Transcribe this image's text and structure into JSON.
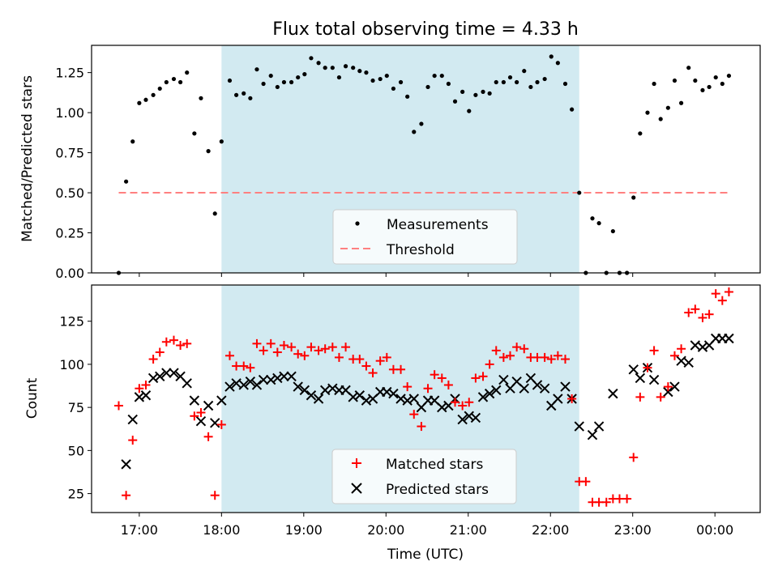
{
  "title": "Flux total observing time = 4.33 h",
  "xlabel": "Time (UTC)",
  "x_ticks": [
    "17:00",
    "18:00",
    "19:00",
    "20:00",
    "21:00",
    "22:00",
    "23:00",
    "00:00"
  ],
  "colors": {
    "shade": "#add8e6",
    "measurement": "#000000",
    "threshold": "#ff8080",
    "matched": "#ff0000",
    "predicted": "#000000"
  },
  "chart_data": [
    {
      "type": "scatter",
      "panel": "top",
      "ylabel": "Matched/Predicted stars",
      "xlim_hours": [
        16.42,
        24.55
      ],
      "ylim": [
        0,
        1.42
      ],
      "y_ticks": [
        "0.00",
        "0.25",
        "0.50",
        "0.75",
        "1.00",
        "1.25"
      ],
      "shaded_region_hours": [
        18.0,
        22.35
      ],
      "legend": {
        "location": "lower center",
        "entries": [
          "Measurements",
          "Threshold"
        ]
      },
      "threshold": {
        "name": "Threshold",
        "value": 0.5,
        "x_range_hours": [
          16.75,
          24.2
        ]
      },
      "x": [
        16.75,
        16.84,
        16.92,
        17.0,
        17.08,
        17.17,
        17.25,
        17.33,
        17.42,
        17.5,
        17.58,
        17.67,
        17.75,
        17.84,
        17.92,
        18.0,
        18.1,
        18.18,
        18.27,
        18.35,
        18.43,
        18.51,
        18.6,
        18.68,
        18.76,
        18.85,
        18.93,
        19.01,
        19.09,
        19.18,
        19.26,
        19.35,
        19.43,
        19.51,
        19.6,
        19.68,
        19.76,
        19.84,
        19.93,
        20.01,
        20.09,
        20.18,
        20.26,
        20.34,
        20.43,
        20.51,
        20.59,
        20.68,
        20.76,
        20.84,
        20.93,
        21.01,
        21.09,
        21.18,
        21.26,
        21.34,
        21.43,
        21.51,
        21.59,
        21.68,
        21.76,
        21.84,
        21.93,
        22.01,
        22.09,
        22.18,
        22.26,
        22.35,
        22.43,
        22.51,
        22.59,
        22.68,
        22.76,
        22.84,
        22.93,
        23.01,
        23.09,
        23.18,
        23.26,
        23.34,
        23.43,
        23.51,
        23.59,
        23.68,
        23.76,
        23.85,
        23.93,
        24.01,
        24.09,
        24.17
      ],
      "series": [
        {
          "name": "Measurements",
          "values": [
            0.0,
            0.57,
            0.82,
            1.06,
            1.08,
            1.11,
            1.15,
            1.19,
            1.21,
            1.19,
            1.25,
            0.87,
            1.09,
            0.76,
            0.37,
            0.82,
            1.2,
            1.11,
            1.12,
            1.09,
            1.27,
            1.18,
            1.23,
            1.16,
            1.19,
            1.19,
            1.22,
            1.24,
            1.34,
            1.31,
            1.28,
            1.28,
            1.22,
            1.29,
            1.28,
            1.26,
            1.25,
            1.2,
            1.21,
            1.23,
            1.15,
            1.19,
            1.1,
            0.88,
            0.93,
            1.16,
            1.23,
            1.23,
            1.18,
            1.07,
            1.13,
            1.01,
            1.11,
            1.13,
            1.12,
            1.19,
            1.19,
            1.22,
            1.19,
            1.26,
            1.16,
            1.19,
            1.21,
            1.35,
            1.31,
            1.18,
            1.02,
            0.5,
            0.0,
            0.34,
            0.31,
            0.0,
            0.26,
            0.0,
            0.0,
            0.47,
            0.87,
            1.0,
            1.18,
            0.96,
            1.03,
            1.2,
            1.06,
            1.28,
            1.2,
            1.14,
            1.16,
            1.22,
            1.18,
            1.23
          ]
        }
      ]
    },
    {
      "type": "scatter",
      "panel": "bottom",
      "ylabel": "Count",
      "xlabel": "Time (UTC)",
      "xlim_hours": [
        16.42,
        24.55
      ],
      "ylim": [
        14,
        146
      ],
      "y_ticks": [
        "25",
        "50",
        "75",
        "100",
        "125"
      ],
      "shaded_region_hours": [
        18.0,
        22.35
      ],
      "legend": {
        "location": "lower center",
        "entries": [
          "Matched stars",
          "Predicted stars"
        ]
      },
      "x": [
        16.75,
        16.84,
        16.92,
        17.0,
        17.08,
        17.17,
        17.25,
        17.33,
        17.42,
        17.5,
        17.58,
        17.67,
        17.75,
        17.84,
        17.92,
        18.0,
        18.1,
        18.18,
        18.27,
        18.35,
        18.43,
        18.51,
        18.6,
        18.68,
        18.76,
        18.85,
        18.93,
        19.01,
        19.09,
        19.18,
        19.26,
        19.35,
        19.43,
        19.51,
        19.6,
        19.68,
        19.76,
        19.84,
        19.93,
        20.01,
        20.09,
        20.18,
        20.26,
        20.34,
        20.43,
        20.51,
        20.59,
        20.68,
        20.76,
        20.84,
        20.93,
        21.01,
        21.09,
        21.18,
        21.26,
        21.34,
        21.43,
        21.51,
        21.59,
        21.68,
        21.76,
        21.84,
        21.93,
        22.01,
        22.09,
        22.18,
        22.26,
        22.35,
        22.43,
        22.51,
        22.59,
        22.68,
        22.76,
        22.84,
        22.93,
        23.01,
        23.09,
        23.18,
        23.26,
        23.34,
        23.43,
        23.51,
        23.59,
        23.68,
        23.76,
        23.85,
        23.93,
        24.01,
        24.09,
        24.17
      ],
      "series": [
        {
          "name": "Matched stars",
          "marker": "plus",
          "values": [
            76,
            24,
            56,
            86,
            88,
            103,
            107,
            113,
            114,
            111,
            112,
            70,
            72,
            58,
            24,
            65,
            105,
            99,
            99,
            98,
            112,
            108,
            112,
            107,
            111,
            110,
            106,
            105,
            110,
            108,
            109,
            110,
            104,
            110,
            103,
            103,
            99,
            95,
            102,
            104,
            97,
            97,
            87,
            71,
            64,
            86,
            94,
            92,
            88,
            78,
            76,
            78,
            92,
            93,
            100,
            108,
            104,
            105,
            110,
            109,
            104,
            104,
            104,
            103,
            105,
            103,
            80,
            32,
            32,
            20,
            20,
            20,
            22,
            22,
            22,
            46,
            81,
            98,
            108,
            81,
            87,
            105,
            109,
            130,
            132,
            127,
            129,
            141,
            137,
            142
          ]
        },
        {
          "name": "Predicted stars",
          "marker": "x",
          "values": [
            null,
            42,
            68,
            81,
            82,
            92,
            93,
            95,
            95,
            93,
            89,
            79,
            67,
            76,
            66,
            79,
            87,
            89,
            88,
            90,
            88,
            91,
            91,
            92,
            93,
            93,
            87,
            85,
            82,
            80,
            85,
            86,
            85,
            85,
            81,
            82,
            79,
            80,
            84,
            84,
            83,
            80,
            79,
            80,
            75,
            79,
            79,
            75,
            76,
            80,
            68,
            70,
            69,
            81,
            83,
            85,
            91,
            86,
            90,
            86,
            92,
            88,
            86,
            76,
            80,
            87,
            80,
            64,
            null,
            59,
            64,
            null,
            83,
            null,
            null,
            97,
            92,
            98,
            91,
            null,
            84,
            87,
            102,
            101,
            111,
            110,
            111,
            115,
            115,
            115
          ]
        }
      ]
    }
  ]
}
